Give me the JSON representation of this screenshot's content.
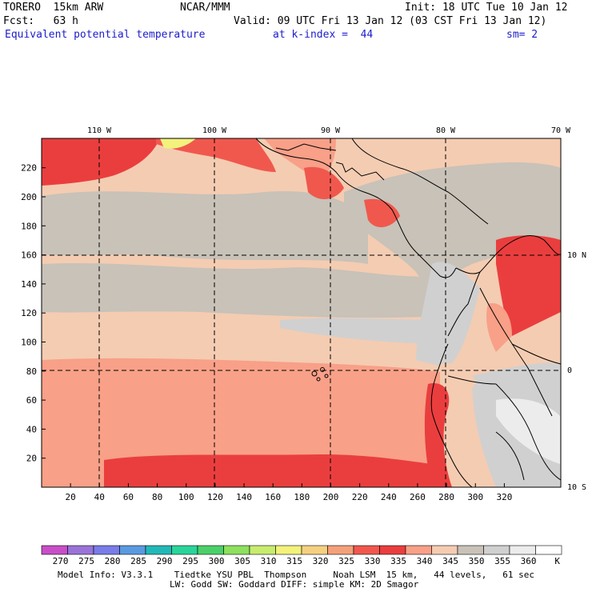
{
  "header": {
    "model": "TORERO  15km ARW",
    "center": "NCAR/MMM",
    "init": "Init: 18 UTC Tue 10 Jan 12",
    "fcst": "Fcst:   63 h",
    "valid": "Valid: 09 UTC Fri 13 Jan 12 (03 CST Fri 13 Jan 12)",
    "field": "Equivalent potential temperature",
    "level": "at k-index =  44",
    "smooth": "sm= 2"
  },
  "map": {
    "lon_labels": [
      "110 W",
      "100 W",
      "90 W",
      "80 W",
      "70 W"
    ],
    "lat_labels": [
      "10 N",
      "0",
      "10 S"
    ],
    "x_ticks": [
      "20",
      "40",
      "60",
      "80",
      "100",
      "120",
      "140",
      "160",
      "180",
      "200",
      "220",
      "240",
      "260",
      "280",
      "300",
      "320"
    ],
    "y_ticks": [
      "20",
      "40",
      "60",
      "80",
      "100",
      "120",
      "140",
      "160",
      "180",
      "200",
      "220"
    ]
  },
  "legend": {
    "values": [
      "270",
      "275",
      "280",
      "285",
      "290",
      "295",
      "300",
      "305",
      "310",
      "315",
      "320",
      "325",
      "330",
      "335",
      "340",
      "345",
      "350",
      "355",
      "360"
    ],
    "unit": "K",
    "colors": [
      "#c84ec8",
      "#9a73d8",
      "#7a7ce8",
      "#5a9ae0",
      "#22b8b8",
      "#2ad49a",
      "#4ad06a",
      "#8ee05e",
      "#c8ec6e",
      "#f2f27c",
      "#f6d082",
      "#f4a07a",
      "#f0584e",
      "#ea3e3e",
      "#f8a088",
      "#f4ccb2",
      "#c8c2b8",
      "#d0d0d0",
      "#ececec",
      "#ffffff"
    ]
  },
  "footer": {
    "line1": "Model Info: V3.3.1    Tiedtke YSU PBL  Thompson     Noah LSM  15 km,   44 levels,   61 sec",
    "line2": "LW: Godd SW: Goddard DIFF: simple KM: 2D Smagor"
  }
}
